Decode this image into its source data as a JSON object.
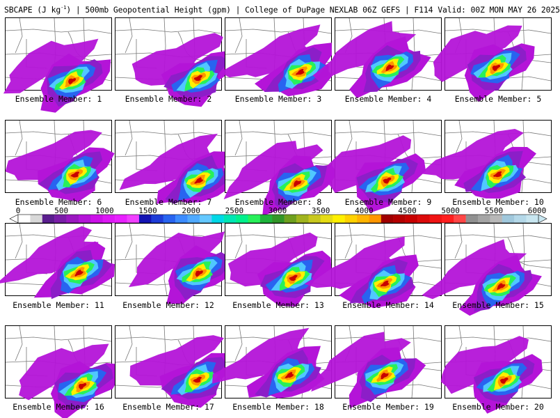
{
  "title": {
    "prefix": "SBCAPE (J kg",
    "sup": "-1",
    "suffix": ") | 500mb Geopotential Height (gpm) | College of DuPage NEXLAB 06Z GEFS | F114 Valid: 00Z MON MAY 26 2025"
  },
  "members": [
    {
      "label": "Ensemble Member: 1"
    },
    {
      "label": "Ensemble Member: 2"
    },
    {
      "label": "Ensemble Member: 3"
    },
    {
      "label": "Ensemble Member: 4"
    },
    {
      "label": "Ensemble Member: 5"
    },
    {
      "label": "Ensemble Member: 6"
    },
    {
      "label": "Ensemble Member: 7"
    },
    {
      "label": "Ensemble Member: 8"
    },
    {
      "label": "Ensemble Member: 9"
    },
    {
      "label": "Ensemble Member: 10"
    },
    {
      "label": "Ensemble Member: 11"
    },
    {
      "label": "Ensemble Member: 12"
    },
    {
      "label": "Ensemble Member: 13"
    },
    {
      "label": "Ensemble Member: 14"
    },
    {
      "label": "Ensemble Member: 15"
    },
    {
      "label": "Ensemble Member: 16"
    },
    {
      "label": "Ensemble Member: 17"
    },
    {
      "label": "Ensemble Member: 18"
    },
    {
      "label": "Ensemble Member: 19"
    },
    {
      "label": "Ensemble Member: 20"
    }
  ],
  "colorbar": {
    "labels": [
      "0",
      "500",
      "1000",
      "1500",
      "2000",
      "2500",
      "3000",
      "3500",
      "4000",
      "4500",
      "5000",
      "5500",
      "6000"
    ],
    "colors": [
      "#ffffff",
      "#d8d8d8",
      "#5a1e8e",
      "#7a1ea8",
      "#9a18c0",
      "#b414d8",
      "#cc10e8",
      "#dc18f4",
      "#e820ff",
      "#f040ff",
      "#1414b4",
      "#1e3cd8",
      "#2864f0",
      "#3c8cff",
      "#50aaff",
      "#64c8ff",
      "#00d8e6",
      "#00e6b4",
      "#00f08c",
      "#28f05a",
      "#1eb43c",
      "#329628",
      "#6ea01e",
      "#a0b41e",
      "#c8c81e",
      "#e6dc14",
      "#fff000",
      "#ffd200",
      "#ffb400",
      "#ff9600",
      "#a00000",
      "#b40000",
      "#c80000",
      "#dc0a0a",
      "#f01414",
      "#ff1e1e",
      "#ff4646",
      "#909090",
      "#a4a4a4",
      "#b8b8b8",
      "#a0c8dc",
      "#b4d8e8",
      "#c8e6f0"
    ]
  }
}
